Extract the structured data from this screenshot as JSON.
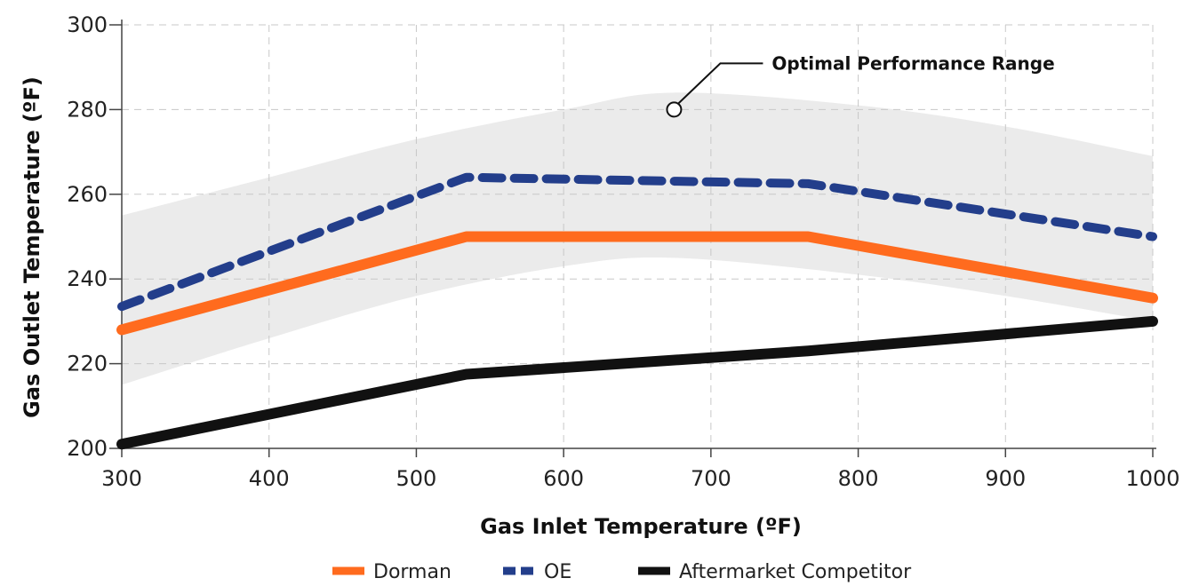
{
  "chart_data": {
    "type": "line",
    "xlabel": "Gas Inlet Temperature (ºF)",
    "ylabel": "Gas Outlet Temperature (ºF)",
    "xlim": [
      300,
      1000
    ],
    "ylim": [
      200,
      300
    ],
    "x_ticks": [
      300,
      400,
      500,
      600,
      700,
      800,
      900,
      1000
    ],
    "y_ticks": [
      200,
      220,
      240,
      260,
      280,
      300
    ],
    "grid": true,
    "legend_position": "bottom",
    "annotation": {
      "text": "Optimal Performance Range",
      "x": 675,
      "y": 280
    },
    "band": {
      "name": "Optimal Performance Range",
      "color": "#ebebeb",
      "x": [
        300,
        400,
        500,
        600,
        675,
        800,
        900,
        1000
      ],
      "upper": [
        255,
        264,
        273,
        280,
        284,
        281,
        276,
        269
      ],
      "lower": [
        215,
        226,
        236,
        243,
        245,
        241,
        236,
        230
      ]
    },
    "series": [
      {
        "name": "Dorman",
        "color": "#ff6b1e",
        "style": "solid",
        "x": [
          300,
          534,
          766,
          1000
        ],
        "values": [
          228,
          250,
          250,
          235.5
        ]
      },
      {
        "name": "OE",
        "color": "#233e8b",
        "style": "dashed",
        "x": [
          300,
          534,
          766,
          1000
        ],
        "values": [
          233.5,
          264,
          262.5,
          250
        ]
      },
      {
        "name": "Aftermarket Competitor",
        "color": "#111111",
        "style": "solid",
        "x": [
          300,
          534,
          766,
          1000
        ],
        "values": [
          201,
          217.5,
          223,
          230
        ]
      }
    ]
  }
}
